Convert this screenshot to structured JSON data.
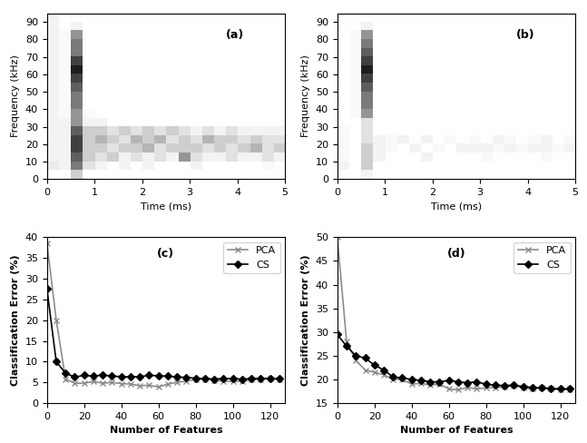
{
  "chart_data": [
    {
      "type": "heatmap",
      "annotation": "(a)",
      "x_label": "Time (ms)",
      "y_label": "Frequency (kHz)",
      "xlim": [
        0,
        5
      ],
      "ylim": [
        0,
        95
      ],
      "xticks": [
        0,
        1,
        2,
        3,
        4,
        5
      ],
      "yticks": [
        0,
        10,
        20,
        30,
        40,
        50,
        60,
        70,
        80,
        90
      ],
      "color": "Greys",
      "grid": false,
      "cells": [
        [
          0,
          0,
          0.3,
          0,
          0,
          0,
          0,
          0,
          0,
          0,
          0,
          0,
          0,
          0,
          0,
          0,
          0,
          0,
          0,
          0
        ],
        [
          0.15,
          0.1,
          0.6,
          0.2,
          0.1,
          0,
          0.1,
          0,
          0.1,
          0,
          0,
          0,
          0.1,
          0,
          0,
          0,
          0,
          0,
          0.05,
          0
        ],
        [
          0.1,
          0.1,
          0.7,
          0.3,
          0.2,
          0.3,
          0.1,
          0.2,
          0.1,
          0.2,
          0.1,
          0.5,
          0.2,
          0.1,
          0.1,
          0.2,
          0.1,
          0.1,
          0.2,
          0.1
        ],
        [
          0.1,
          0.1,
          0.8,
          0.3,
          0.3,
          0.2,
          0.3,
          0.3,
          0.4,
          0.2,
          0.3,
          0.3,
          0.3,
          0.2,
          0.3,
          0.2,
          0.3,
          0.4,
          0.2,
          0.3
        ],
        [
          0.1,
          0.1,
          0.8,
          0.3,
          0.4,
          0.3,
          0.2,
          0.4,
          0.3,
          0.4,
          0.2,
          0.3,
          0.2,
          0.4,
          0.3,
          0.3,
          0.2,
          0.3,
          0.2,
          0.2
        ],
        [
          0.1,
          0.1,
          0.7,
          0.3,
          0.3,
          0.2,
          0.3,
          0.2,
          0.3,
          0.2,
          0.3,
          0.2,
          0.1,
          0.2,
          0.1,
          0.2,
          0.1,
          0.1,
          0.1,
          0.1
        ],
        [
          0.1,
          0.1,
          0.5,
          0.1,
          0.1,
          0,
          0,
          0,
          0,
          0,
          0,
          0,
          0,
          0,
          0,
          0,
          0,
          0,
          0,
          0
        ],
        [
          0.1,
          0.05,
          0.5,
          0.05,
          0,
          0,
          0,
          0,
          0,
          0,
          0,
          0,
          0,
          0,
          0,
          0,
          0,
          0,
          0,
          0
        ],
        [
          0.1,
          0.05,
          0.6,
          0,
          0,
          0,
          0,
          0,
          0,
          0,
          0,
          0,
          0,
          0,
          0,
          0,
          0,
          0,
          0,
          0
        ],
        [
          0.1,
          0.05,
          0.6,
          0,
          0,
          0,
          0,
          0,
          0,
          0,
          0,
          0,
          0,
          0,
          0,
          0,
          0,
          0,
          0,
          0
        ],
        [
          0.1,
          0.05,
          0.7,
          0,
          0,
          0,
          0,
          0,
          0,
          0,
          0,
          0,
          0,
          0,
          0,
          0,
          0,
          0,
          0,
          0
        ],
        [
          0.1,
          0.05,
          0.8,
          0,
          0,
          0,
          0,
          0,
          0,
          0,
          0,
          0,
          0,
          0,
          0,
          0,
          0,
          0,
          0,
          0
        ],
        [
          0.1,
          0.05,
          0.9,
          0,
          0,
          0,
          0,
          0,
          0,
          0,
          0,
          0,
          0,
          0,
          0,
          0,
          0,
          0,
          0,
          0
        ],
        [
          0.1,
          0.05,
          0.8,
          0,
          0,
          0,
          0,
          0,
          0,
          0,
          0,
          0,
          0,
          0,
          0,
          0,
          0,
          0,
          0,
          0
        ],
        [
          0.1,
          0.05,
          0.6,
          0,
          0,
          0,
          0,
          0,
          0,
          0,
          0,
          0,
          0,
          0,
          0,
          0,
          0,
          0,
          0,
          0
        ],
        [
          0.1,
          0.05,
          0.6,
          0,
          0,
          0,
          0,
          0,
          0,
          0,
          0,
          0,
          0,
          0,
          0,
          0,
          0,
          0,
          0,
          0
        ],
        [
          0.1,
          0.05,
          0.5,
          0,
          0,
          0,
          0,
          0,
          0,
          0,
          0,
          0,
          0,
          0,
          0,
          0,
          0,
          0,
          0,
          0
        ],
        [
          0.1,
          0,
          0.1,
          0,
          0,
          0,
          0,
          0,
          0,
          0,
          0,
          0,
          0,
          0,
          0,
          0,
          0,
          0,
          0,
          0
        ],
        [
          0.1,
          0,
          0,
          0,
          0,
          0,
          0,
          0,
          0,
          0,
          0,
          0,
          0,
          0,
          0,
          0,
          0,
          0,
          0,
          0
        ]
      ]
    },
    {
      "type": "heatmap",
      "annotation": "(b)",
      "x_label": "Time (ms)",
      "y_label": "Frequency (kHz)",
      "xlim": [
        0,
        5
      ],
      "ylim": [
        0,
        95
      ],
      "xticks": [
        0,
        1,
        2,
        3,
        4,
        5
      ],
      "yticks": [
        0,
        10,
        20,
        30,
        40,
        50,
        60,
        70,
        80,
        90
      ],
      "color": "Greys",
      "grid": false,
      "cells": [
        [
          0,
          0,
          0.1,
          0,
          0,
          0,
          0,
          0,
          0,
          0,
          0,
          0,
          0,
          0,
          0,
          0,
          0,
          0,
          0,
          0
        ],
        [
          0.1,
          0,
          0.3,
          0,
          0,
          0,
          0,
          0,
          0,
          0,
          0,
          0,
          0,
          0,
          0,
          0,
          0,
          0,
          0,
          0
        ],
        [
          0.05,
          0,
          0.3,
          0.1,
          0,
          0,
          0,
          0.1,
          0,
          0,
          0,
          0,
          0.05,
          0,
          0,
          0,
          0,
          0.05,
          0,
          0
        ],
        [
          0.05,
          0,
          0.3,
          0.1,
          0.05,
          0,
          0.1,
          0,
          0.05,
          0,
          0.1,
          0.1,
          0.1,
          0.05,
          0.1,
          0.05,
          0.1,
          0.1,
          0.05,
          0.1
        ],
        [
          0.05,
          0,
          0.2,
          0.1,
          0.05,
          0.1,
          0,
          0.1,
          0,
          0.05,
          0,
          0.05,
          0,
          0.1,
          0.05,
          0,
          0.05,
          0.1,
          0,
          0.05
        ],
        [
          0.05,
          0,
          0.2,
          0,
          0,
          0,
          0,
          0,
          0,
          0,
          0,
          0,
          0,
          0,
          0,
          0,
          0,
          0,
          0,
          0
        ],
        [
          0,
          0,
          0.2,
          0,
          0,
          0,
          0,
          0,
          0,
          0,
          0,
          0,
          0,
          0,
          0,
          0,
          0,
          0,
          0,
          0
        ],
        [
          0,
          0.05,
          0.5,
          0,
          0,
          0,
          0,
          0,
          0,
          0,
          0,
          0,
          0,
          0,
          0,
          0,
          0,
          0,
          0,
          0
        ],
        [
          0,
          0.05,
          0.6,
          0,
          0,
          0,
          0,
          0,
          0,
          0,
          0,
          0,
          0,
          0,
          0,
          0,
          0,
          0,
          0,
          0
        ],
        [
          0,
          0.05,
          0.6,
          0,
          0,
          0,
          0,
          0,
          0,
          0,
          0,
          0,
          0,
          0,
          0,
          0,
          0,
          0,
          0,
          0
        ],
        [
          0,
          0.05,
          0.7,
          0,
          0,
          0,
          0,
          0,
          0,
          0,
          0,
          0,
          0,
          0,
          0,
          0,
          0,
          0,
          0,
          0
        ],
        [
          0,
          0.05,
          0.8,
          0,
          0,
          0,
          0,
          0,
          0,
          0,
          0,
          0,
          0,
          0,
          0,
          0,
          0,
          0,
          0,
          0
        ],
        [
          0,
          0.05,
          0.9,
          0,
          0,
          0,
          0,
          0,
          0,
          0,
          0,
          0,
          0,
          0,
          0,
          0,
          0,
          0,
          0,
          0
        ],
        [
          0,
          0.05,
          0.8,
          0,
          0,
          0,
          0,
          0,
          0,
          0,
          0,
          0,
          0,
          0,
          0,
          0,
          0,
          0,
          0,
          0
        ],
        [
          0,
          0.05,
          0.7,
          0,
          0,
          0,
          0,
          0,
          0,
          0,
          0,
          0,
          0,
          0,
          0,
          0,
          0,
          0,
          0,
          0
        ],
        [
          0,
          0.05,
          0.6,
          0,
          0,
          0,
          0,
          0,
          0,
          0,
          0,
          0,
          0,
          0,
          0,
          0,
          0,
          0,
          0,
          0
        ],
        [
          0,
          0.05,
          0.5,
          0,
          0,
          0,
          0,
          0,
          0,
          0,
          0,
          0,
          0,
          0,
          0,
          0,
          0,
          0,
          0,
          0
        ],
        [
          0,
          0,
          0.1,
          0,
          0,
          0,
          0,
          0,
          0,
          0,
          0,
          0,
          0,
          0,
          0,
          0,
          0,
          0,
          0,
          0
        ],
        [
          0,
          0,
          0,
          0,
          0,
          0,
          0,
          0,
          0,
          0,
          0,
          0,
          0,
          0,
          0,
          0,
          0,
          0,
          0,
          0
        ]
      ]
    },
    {
      "type": "line",
      "annotation": "(c)",
      "x_label": "Number of Features",
      "y_label": "Classification Error (%)",
      "xlim": [
        0,
        128
      ],
      "ylim": [
        0,
        40
      ],
      "xticks": [
        0,
        20,
        40,
        60,
        80,
        100,
        120
      ],
      "yticks": [
        0,
        5,
        10,
        15,
        20,
        25,
        30,
        35,
        40
      ],
      "legend": "upper right",
      "grid": false,
      "x": [
        0,
        5,
        10,
        15,
        20,
        25,
        30,
        35,
        40,
        45,
        50,
        55,
        60,
        65,
        70,
        75,
        80,
        85,
        90,
        95,
        100,
        105,
        110,
        115,
        120,
        125
      ],
      "series": [
        {
          "name": "PCA",
          "color": "#8c8c8c",
          "marker": "x",
          "line_style": "solid",
          "values": [
            38.5,
            20,
            5.8,
            4.8,
            4.8,
            5.2,
            4.8,
            5,
            4.7,
            4.6,
            4.2,
            4.3,
            3.9,
            4.6,
            5,
            5.3,
            5.7,
            5.8,
            5.5,
            5.3,
            5.2,
            5.3,
            5.6,
            5.8,
            5.9,
            5.8
          ]
        },
        {
          "name": "CS",
          "color": "#000000",
          "marker": "diamond",
          "line_style": "solid",
          "values": [
            27.5,
            10,
            7.2,
            6.3,
            6.7,
            6.5,
            6.8,
            6.5,
            6.4,
            6.3,
            6.4,
            6.7,
            6.6,
            6.5,
            6.3,
            6.2,
            6,
            5.9,
            5.8,
            5.9,
            5.9,
            5.8,
            5.9,
            6,
            5.9,
            5.9
          ]
        }
      ]
    },
    {
      "type": "line",
      "annotation": "(d)",
      "x_label": "Number of Features",
      "y_label": "Classification Error (%)",
      "xlim": [
        0,
        128
      ],
      "ylim": [
        15,
        50
      ],
      "xticks": [
        0,
        20,
        40,
        60,
        80,
        100,
        120
      ],
      "yticks": [
        15,
        20,
        25,
        30,
        35,
        40,
        45,
        50
      ],
      "legend": "upper right",
      "grid": false,
      "x": [
        0,
        5,
        10,
        15,
        20,
        25,
        30,
        35,
        40,
        45,
        50,
        55,
        60,
        65,
        70,
        75,
        80,
        85,
        90,
        95,
        100,
        105,
        110,
        115,
        120,
        125
      ],
      "series": [
        {
          "name": "PCA",
          "color": "#8c8c8c",
          "marker": "x",
          "line_style": "solid",
          "values": [
            50,
            28,
            24,
            22,
            21.5,
            21,
            20,
            20,
            19,
            19.2,
            18.8,
            19,
            18,
            17.8,
            18.3,
            18,
            18.2,
            18.3,
            18.4,
            18.6,
            18.2,
            18,
            18.3,
            18,
            17.8,
            17.9
          ]
        },
        {
          "name": "CS",
          "color": "#000000",
          "marker": "diamond",
          "line_style": "solid",
          "values": [
            29.5,
            27,
            25,
            24.5,
            23,
            22,
            20.5,
            20.3,
            20,
            19.8,
            19.5,
            19.5,
            19.8,
            19.5,
            19.3,
            19.5,
            19,
            18.8,
            18.7,
            18.8,
            18.5,
            18.3,
            18.2,
            18.1,
            18,
            18
          ]
        }
      ]
    }
  ]
}
